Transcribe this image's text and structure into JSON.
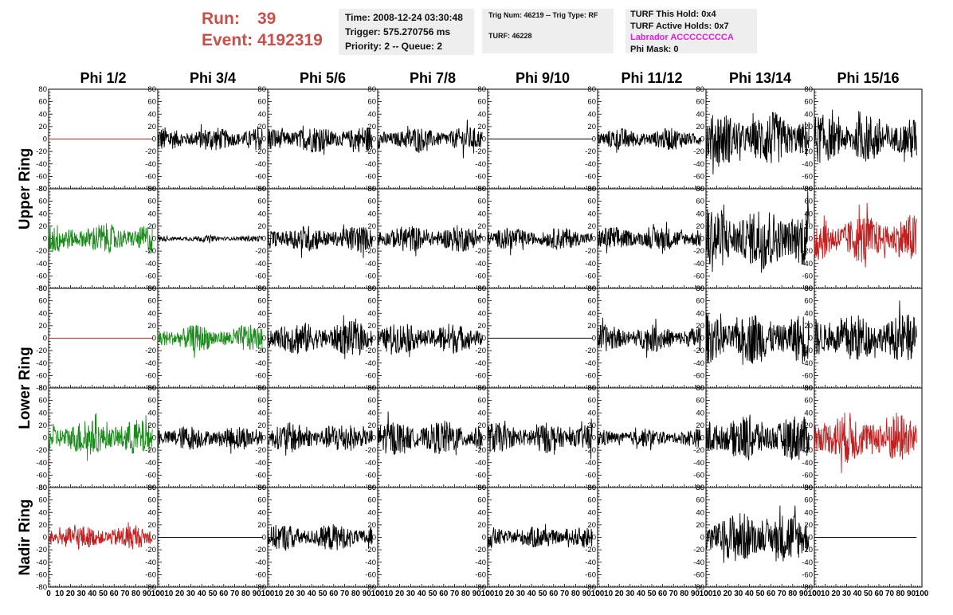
{
  "header": {
    "run_label": "Run:",
    "run_value": "39",
    "event_label": "Event:",
    "event_value": "4192319",
    "time": "Time: 2008-12-24 03:30:48",
    "trigger": "Trigger: 575.270756 ms",
    "priority": "Priority: 2 -- Queue: 2",
    "trig_num": "Trig Num: 46219 -- Trig Type: RF",
    "turf": "TURF: 46228",
    "turf_hold": "TURF This Hold: 0x4",
    "turf_active": "TURF Active Holds: 0x7",
    "labrador": "Labrador ACCCCCCCCA",
    "phi_mask": "Phi Mask: 0"
  },
  "colors": {
    "run_text": "#c8504a",
    "labrador_text": "#e020e0",
    "trace_black": "#000000",
    "trace_green": "#1a8a1a",
    "trace_red": "#c02020"
  },
  "chart_data": {
    "type": "line",
    "title": "",
    "columns": [
      "Phi 1/2",
      "Phi 3/4",
      "Phi 5/6",
      "Phi 7/8",
      "Phi 9/10",
      "Phi 11/12",
      "Phi 13/14",
      "Phi 15/16"
    ],
    "ring_labels": [
      "Upper Ring",
      "Lower Ring",
      "Nadir Ring"
    ],
    "xlim": [
      0,
      100
    ],
    "ylim": [
      -80,
      80
    ],
    "x_ticks": [
      0,
      10,
      20,
      30,
      40,
      50,
      60,
      70,
      80,
      90,
      100
    ],
    "y_ticks": [
      -80,
      -60,
      -40,
      -20,
      0,
      20,
      40,
      60,
      80
    ],
    "trace_x_range": [
      0,
      95
    ],
    "description": "Waveform amplitude vs time in each channel; rows are rings (upper 2 rows, lower 2 rows, nadir 1 row); amp = approximate peak amplitude, flat = channel flat at 0",
    "panels": [
      [
        {
          "color": "red",
          "flat": true
        },
        {
          "color": "black",
          "amp": 20
        },
        {
          "color": "black",
          "amp": 22
        },
        {
          "color": "black",
          "amp": 20
        },
        {
          "color": "black",
          "flat": true
        },
        {
          "color": "black",
          "amp": 18
        },
        {
          "color": "black",
          "amp": 45
        },
        {
          "color": "black",
          "amp": 40
        }
      ],
      [
        {
          "color": "green",
          "amp": 25
        },
        {
          "color": "black",
          "amp": 5
        },
        {
          "color": "black",
          "amp": 22
        },
        {
          "color": "black",
          "amp": 22
        },
        {
          "color": "black",
          "amp": 18
        },
        {
          "color": "black",
          "amp": 20
        },
        {
          "color": "black",
          "amp": 55
        },
        {
          "color": "red",
          "amp": 40
        }
      ],
      [
        {
          "color": "red",
          "flat": true
        },
        {
          "color": "green",
          "amp": 22
        },
        {
          "color": "black",
          "amp": 28
        },
        {
          "color": "black",
          "amp": 25
        },
        {
          "color": "black",
          "flat": true
        },
        {
          "color": "black",
          "amp": 22
        },
        {
          "color": "black",
          "amp": 42
        },
        {
          "color": "black",
          "amp": 40
        }
      ],
      [
        {
          "color": "green",
          "amp": 30
        },
        {
          "color": "black",
          "amp": 20
        },
        {
          "color": "black",
          "amp": 25
        },
        {
          "color": "black",
          "amp": 28
        },
        {
          "color": "black",
          "amp": 25
        },
        {
          "color": "black",
          "amp": 15
        },
        {
          "color": "black",
          "amp": 38
        },
        {
          "color": "red",
          "amp": 42
        }
      ],
      [
        {
          "color": "red",
          "amp": 20
        },
        {
          "color": "black",
          "flat": true
        },
        {
          "color": "black",
          "amp": 22
        },
        {
          "color": "none"
        },
        {
          "color": "black",
          "amp": 18
        },
        {
          "color": "none"
        },
        {
          "color": "black",
          "amp": 42
        },
        {
          "color": "black",
          "flat": true
        }
      ]
    ]
  }
}
